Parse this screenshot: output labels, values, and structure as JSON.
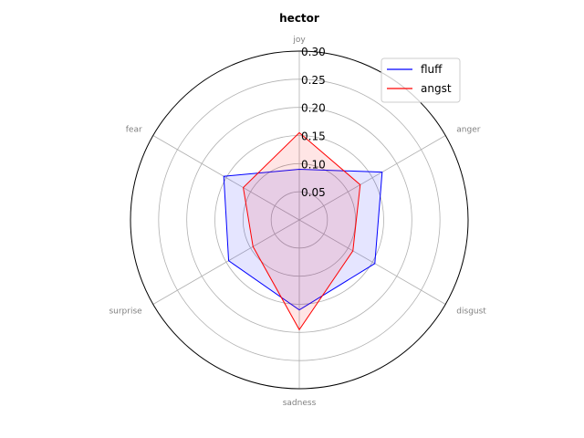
{
  "chart_data": {
    "type": "radar",
    "title": "hector",
    "categories": [
      "joy",
      "anger",
      "disgust",
      "sadness",
      "surprise",
      "fear"
    ],
    "rticks": [
      "0.05",
      "0.10",
      "0.15",
      "0.20",
      "0.25",
      "0.30"
    ],
    "rlim": [
      0,
      0.3
    ],
    "grid": true,
    "legend_position": "top-right",
    "series": [
      {
        "name": "fluff",
        "color": "#0000ff",
        "fill": "#0000ff",
        "values": [
          0.09,
          0.17,
          0.155,
          0.16,
          0.145,
          0.155
        ]
      },
      {
        "name": "angst",
        "color": "#ff0000",
        "fill": "#ff0000",
        "values": [
          0.155,
          0.125,
          0.11,
          0.195,
          0.095,
          0.115
        ]
      }
    ]
  }
}
